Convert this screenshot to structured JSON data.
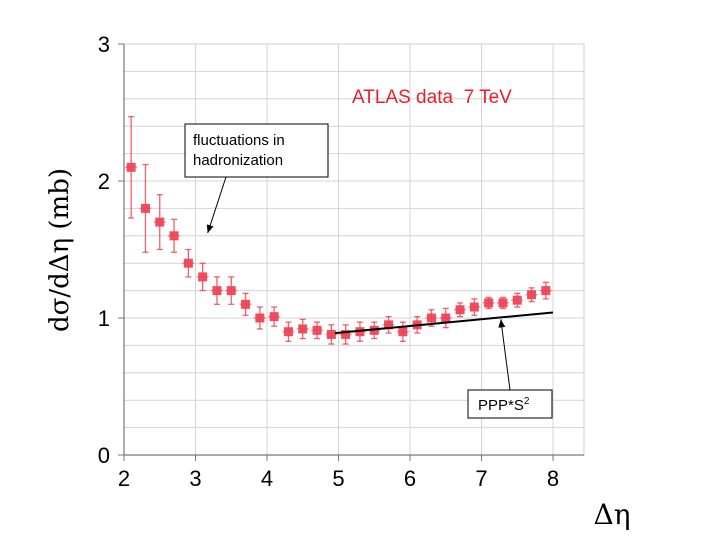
{
  "chart_data": {
    "type": "scatter",
    "title": "",
    "xlabel": "Δη",
    "ylabel": "dσ/dΔη  (mb)",
    "xlim": [
      2,
      8
    ],
    "ylim": [
      0,
      3
    ],
    "x_ticks": [
      "2",
      "3",
      "4",
      "5",
      "6",
      "7",
      "8"
    ],
    "y_ticks": [
      "0",
      "1",
      "2",
      "3"
    ],
    "grid": true,
    "series": [
      {
        "name": "ATLAS data  7 TeV",
        "kind": "points-with-errors",
        "color": "#ee4455",
        "x": [
          2.1,
          2.3,
          2.5,
          2.7,
          2.9,
          3.1,
          3.3,
          3.5,
          3.7,
          3.9,
          4.1,
          4.3,
          4.5,
          4.7,
          4.9,
          5.1,
          5.3,
          5.5,
          5.7,
          5.9,
          6.1,
          6.3,
          6.5,
          6.7,
          6.9,
          7.1,
          7.3,
          7.5,
          7.7,
          7.9
        ],
        "y": [
          2.1,
          1.8,
          1.7,
          1.6,
          1.4,
          1.3,
          1.2,
          1.2,
          1.1,
          1.0,
          1.01,
          0.9,
          0.92,
          0.91,
          0.88,
          0.88,
          0.9,
          0.91,
          0.95,
          0.9,
          0.95,
          1.0,
          1.0,
          1.06,
          1.08,
          1.11,
          1.11,
          1.13,
          1.17,
          1.2
        ],
        "err": [
          0.37,
          0.32,
          0.2,
          0.12,
          0.1,
          0.1,
          0.1,
          0.1,
          0.08,
          0.08,
          0.07,
          0.07,
          0.07,
          0.06,
          0.07,
          0.07,
          0.07,
          0.06,
          0.06,
          0.07,
          0.06,
          0.06,
          0.07,
          0.05,
          0.06,
          0.04,
          0.04,
          0.05,
          0.05,
          0.06
        ]
      },
      {
        "name": "PPP*S²",
        "kind": "line",
        "color": "#000000",
        "x": [
          4.95,
          8.0
        ],
        "y": [
          0.89,
          1.04
        ]
      }
    ],
    "annotations": [
      {
        "id": "fluct",
        "lines": [
          "fluctuations in",
          "hadronization"
        ],
        "arrow_to": {
          "x": 3.17,
          "y": 1.62
        }
      },
      {
        "id": "ppp",
        "text": "PPP*S",
        "sup": "2",
        "arrow_to": {
          "x": 7.27,
          "y": 0.99
        }
      }
    ],
    "tag": "ATLAS data  7 TeV"
  }
}
